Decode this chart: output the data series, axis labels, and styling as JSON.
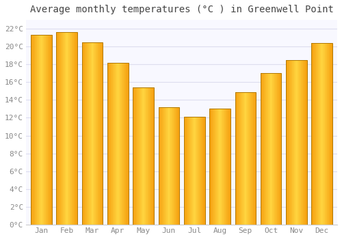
{
  "months": [
    "Jan",
    "Feb",
    "Mar",
    "Apr",
    "May",
    "Jun",
    "Jul",
    "Aug",
    "Sep",
    "Oct",
    "Nov",
    "Dec"
  ],
  "values": [
    21.3,
    21.6,
    20.5,
    18.2,
    15.4,
    13.2,
    12.1,
    13.0,
    14.9,
    17.0,
    18.5,
    20.4
  ],
  "bar_color_left": "#F5A623",
  "bar_color_center": "#FFD44A",
  "bar_color_right": "#E8920A",
  "bar_edge_color": "#B87000",
  "title": "Average monthly temperatures (°C ) in Greenwell Point",
  "ylim": [
    0,
    23
  ],
  "ytick_step": 2,
  "background_color": "#FFFFFF",
  "plot_bg_color": "#F8F8FF",
  "grid_color": "#DDDDEE",
  "title_fontsize": 10,
  "tick_fontsize": 8,
  "font_family": "monospace",
  "tick_color": "#888888",
  "title_color": "#444444"
}
